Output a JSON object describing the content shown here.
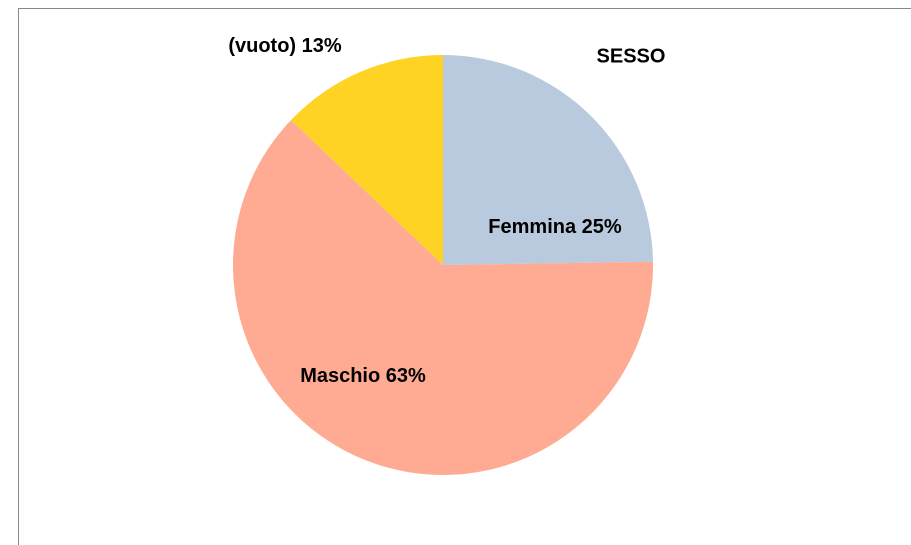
{
  "chart_data": {
    "type": "pie",
    "title": "SESSO",
    "categories": [
      "Femmina",
      "Maschio",
      "(vuoto)"
    ],
    "values": [
      25,
      63,
      13
    ],
    "value_labels": [
      "25%",
      "63%",
      "13%"
    ],
    "colors": [
      "#b9c9de",
      "#ffab93",
      "#ffd324"
    ]
  }
}
